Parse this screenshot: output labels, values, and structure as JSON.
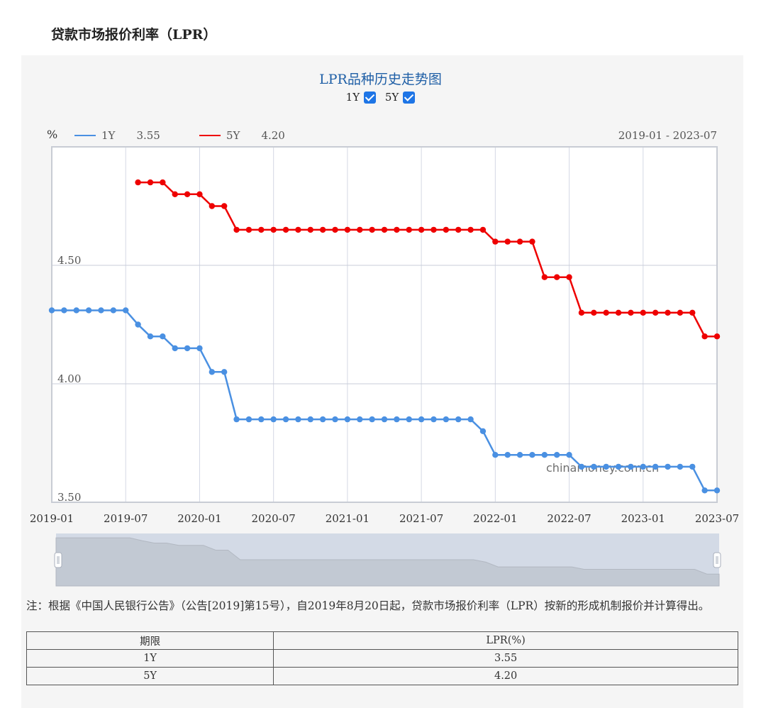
{
  "page": {
    "title": "贷款市场报价利率（LPR）"
  },
  "chart_header": {
    "title": "LPR品种历史走势图",
    "toggles": [
      {
        "label": "1Y",
        "checked": true
      },
      {
        "label": "5Y",
        "checked": true
      }
    ],
    "unit": "%",
    "legend": [
      {
        "name": "1Y",
        "value": "3.55",
        "color": "#4a90e2"
      },
      {
        "name": "5Y",
        "value": "4.20",
        "color": "#ee0000"
      }
    ],
    "date_range": "2019-01 - 2023-07",
    "watermark": "chinamoney.com.cn"
  },
  "chart_data": {
    "type": "line",
    "xlabel": "",
    "ylabel": "%",
    "ylim": [
      3.5,
      5.0
    ],
    "yticks": [
      3.5,
      4.0,
      4.5
    ],
    "ytick_labels": [
      "3.50",
      "4.00",
      "4.50"
    ],
    "xticks": [
      "2019-01",
      "2019-07",
      "2020-01",
      "2020-07",
      "2021-01",
      "2021-07",
      "2022-01",
      "2022-07",
      "2023-01",
      "2023-07"
    ],
    "grid": true,
    "legend_position": "top-left",
    "x": [
      "2019-01",
      "2019-02",
      "2019-03",
      "2019-04",
      "2019-05",
      "2019-06",
      "2019-07",
      "2019-08",
      "2019-09",
      "2019-10",
      "2019-11",
      "2019-12",
      "2020-01",
      "2020-02",
      "2020-03",
      "2020-04",
      "2020-05",
      "2020-06",
      "2020-07",
      "2020-08",
      "2020-09",
      "2020-10",
      "2020-11",
      "2020-12",
      "2021-01",
      "2021-02",
      "2021-03",
      "2021-04",
      "2021-05",
      "2021-06",
      "2021-07",
      "2021-08",
      "2021-09",
      "2021-10",
      "2021-11",
      "2021-12",
      "2022-01",
      "2022-02",
      "2022-03",
      "2022-04",
      "2022-05",
      "2022-06",
      "2022-07",
      "2022-08",
      "2022-09",
      "2022-10",
      "2022-11",
      "2022-12",
      "2023-01",
      "2023-02",
      "2023-03",
      "2023-04",
      "2023-05",
      "2023-06",
      "2023-07"
    ],
    "series": [
      {
        "name": "1Y",
        "color": "#4a90e2",
        "values": [
          4.31,
          4.31,
          4.31,
          4.31,
          4.31,
          4.31,
          4.31,
          4.25,
          4.2,
          4.2,
          4.15,
          4.15,
          4.15,
          4.05,
          4.05,
          3.85,
          3.85,
          3.85,
          3.85,
          3.85,
          3.85,
          3.85,
          3.85,
          3.85,
          3.85,
          3.85,
          3.85,
          3.85,
          3.85,
          3.85,
          3.85,
          3.85,
          3.85,
          3.85,
          3.85,
          3.8,
          3.7,
          3.7,
          3.7,
          3.7,
          3.7,
          3.7,
          3.7,
          3.65,
          3.65,
          3.65,
          3.65,
          3.65,
          3.65,
          3.65,
          3.65,
          3.65,
          3.65,
          3.55,
          3.55
        ]
      },
      {
        "name": "5Y",
        "color": "#ee0000",
        "values": [
          null,
          null,
          null,
          null,
          null,
          null,
          null,
          4.85,
          4.85,
          4.85,
          4.8,
          4.8,
          4.8,
          4.75,
          4.75,
          4.65,
          4.65,
          4.65,
          4.65,
          4.65,
          4.65,
          4.65,
          4.65,
          4.65,
          4.65,
          4.65,
          4.65,
          4.65,
          4.65,
          4.65,
          4.65,
          4.65,
          4.65,
          4.65,
          4.65,
          4.65,
          4.6,
          4.6,
          4.6,
          4.6,
          4.45,
          4.45,
          4.45,
          4.3,
          4.3,
          4.3,
          4.3,
          4.3,
          4.3,
          4.3,
          4.3,
          4.3,
          4.3,
          4.2,
          4.2
        ]
      }
    ]
  },
  "note": "注：根据《中国人民银行公告》（公告[2019]第15号），自2019年8月20日起，贷款市场报价利率（LPR）按新的形成机制报价并计算得出。",
  "table": {
    "headers": [
      "期限",
      "LPR(%)"
    ],
    "rows": [
      [
        "1Y",
        "3.55"
      ],
      [
        "5Y",
        "4.20"
      ]
    ]
  }
}
